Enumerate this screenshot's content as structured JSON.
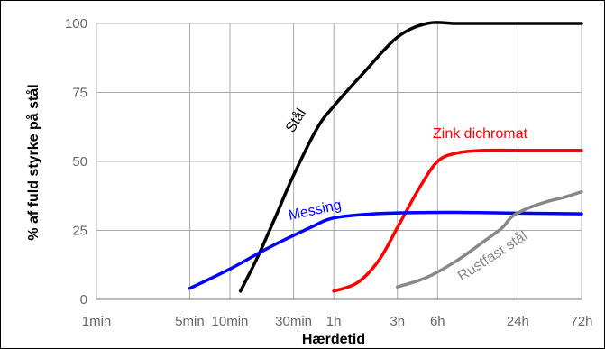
{
  "chart_data": {
    "type": "line",
    "xlabel": "Hærdetid",
    "ylabel": "% af fuld styrke på stål",
    "x_scale": "log",
    "x_ticks": [
      {
        "label": "1min",
        "minutes": 1
      },
      {
        "label": "5min",
        "minutes": 5
      },
      {
        "label": "10min",
        "minutes": 10
      },
      {
        "label": "30min",
        "minutes": 30
      },
      {
        "label": "1h",
        "minutes": 60
      },
      {
        "label": "3h",
        "minutes": 180
      },
      {
        "label": "6h",
        "minutes": 360
      },
      {
        "label": "24h",
        "minutes": 1440
      },
      {
        "label": "72h",
        "minutes": 4320
      }
    ],
    "y_ticks": [
      0,
      25,
      50,
      75,
      100
    ],
    "ylim": [
      0,
      100
    ],
    "grid": true,
    "series": [
      {
        "name": "Stål",
        "color": "#000000",
        "points": [
          [
            12,
            3
          ],
          [
            16,
            15
          ],
          [
            22,
            30
          ],
          [
            30,
            45
          ],
          [
            45,
            62
          ],
          [
            60,
            70
          ],
          [
            100,
            82
          ],
          [
            180,
            95
          ],
          [
            300,
            100
          ],
          [
            500,
            100
          ],
          [
            1000,
            100
          ],
          [
            4320,
            100
          ]
        ]
      },
      {
        "name": "Zink dichromat",
        "color": "#ff0000",
        "points": [
          [
            60,
            3
          ],
          [
            90,
            6
          ],
          [
            130,
            14
          ],
          [
            180,
            26
          ],
          [
            260,
            40
          ],
          [
            360,
            50
          ],
          [
            500,
            53
          ],
          [
            800,
            54
          ],
          [
            1500,
            54
          ],
          [
            4320,
            54
          ]
        ]
      },
      {
        "name": "Messing",
        "color": "#0000ff",
        "points": [
          [
            5,
            4
          ],
          [
            10,
            11
          ],
          [
            20,
            19
          ],
          [
            40,
            26
          ],
          [
            60,
            29.5
          ],
          [
            120,
            31
          ],
          [
            300,
            31.5
          ],
          [
            600,
            31.5
          ],
          [
            1200,
            31.3
          ],
          [
            4320,
            31
          ]
        ]
      },
      {
        "name": "Rustfast stål",
        "color": "#888888",
        "points": [
          [
            180,
            4.5
          ],
          [
            300,
            8
          ],
          [
            500,
            14
          ],
          [
            800,
            21
          ],
          [
            1100,
            26
          ],
          [
            1300,
            30
          ],
          [
            1700,
            33
          ],
          [
            2400,
            35.5
          ],
          [
            3200,
            37
          ],
          [
            4320,
            39
          ]
        ]
      }
    ]
  }
}
